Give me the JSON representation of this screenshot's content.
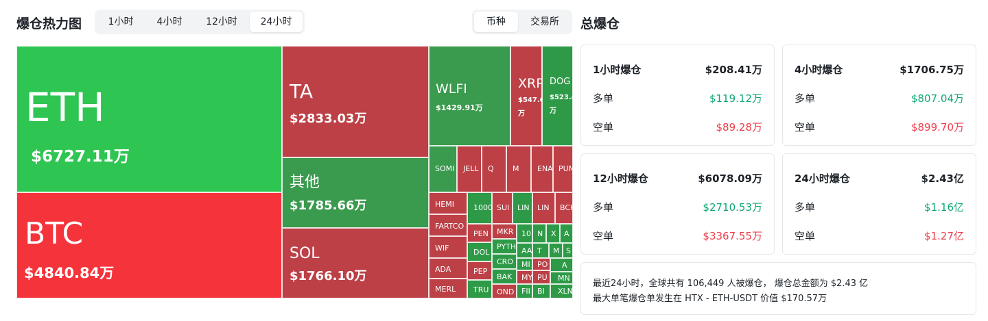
{
  "heatmap": {
    "title": "爆仓热力图",
    "time_tabs": [
      "1小时",
      "4小时",
      "12小时",
      "24小时"
    ],
    "active_time_tab": "24小时",
    "group_tabs": [
      "币种",
      "交易所"
    ],
    "active_group_tab": "币种",
    "colors": {
      "long_green": "#2fc552",
      "dark_green": "#3a9a4d",
      "short_red": "#f5333a",
      "dark_red": "#bd4047"
    },
    "tiles": {
      "eth": {
        "symbol": "ETH",
        "value": "$6727.11万"
      },
      "btc": {
        "symbol": "BTC",
        "value": "$4840.84万"
      },
      "ta": {
        "symbol": "TA",
        "value": "$2833.03万"
      },
      "other": {
        "symbol": "其他",
        "value": "$1785.66万"
      },
      "sol": {
        "symbol": "SOL",
        "value": "$1766.10万"
      },
      "wlfi": {
        "symbol": "WLFI",
        "value": "$1429.91万"
      },
      "xrp": {
        "symbol": "XRP",
        "value": "$547.6",
        "value2": "万"
      },
      "doge": {
        "symbol": "DOG",
        "value": "$523.4",
        "value2": "万"
      },
      "somi": {
        "symbol": "SOMI"
      },
      "jelly": {
        "symbol": "JELL"
      },
      "q": {
        "symbol": "Q"
      },
      "m": {
        "symbol": "M"
      },
      "ena": {
        "symbol": "ENA"
      },
      "pump": {
        "symbol": "PUM"
      },
      "hemi": {
        "symbol": "HEMI"
      },
      "fartcoin": {
        "symbol": "FARTCO"
      },
      "wif": {
        "symbol": "WIF"
      },
      "ada": {
        "symbol": "ADA"
      },
      "merl": {
        "symbol": "MERL"
      },
      "k1000": {
        "symbol": "1000"
      },
      "sui": {
        "symbol": "SUI"
      },
      "link": {
        "symbol": "LIN"
      },
      "linea": {
        "symbol": "LIN"
      },
      "bch": {
        "symbol": "BCH"
      },
      "pengu": {
        "symbol": "PEN"
      },
      "dolo": {
        "symbol": "DOL"
      },
      "pepe": {
        "symbol": "PEP"
      },
      "trump": {
        "symbol": "TRU"
      },
      "mkr": {
        "symbol": "MKR"
      },
      "pyth": {
        "symbol": "PYTH"
      },
      "crv": {
        "symbol": "CRO"
      },
      "bake": {
        "symbol": "BAK"
      },
      "ondo": {
        "symbol": "OND"
      },
      "s10": {
        "symbol": "10"
      },
      "n": {
        "symbol": "N"
      },
      "x": {
        "symbol": "X"
      },
      "a": {
        "symbol": "A"
      },
      "aa": {
        "symbol": "AA"
      },
      "t": {
        "symbol": "T"
      },
      "m2": {
        "symbol": "M"
      },
      "s": {
        "symbol": "S"
      },
      "mi": {
        "symbol": "MI"
      },
      "po": {
        "symbol": "PO"
      },
      "a2": {
        "symbol": "A"
      },
      "my": {
        "symbol": "MY"
      },
      "pu": {
        "symbol": "PU"
      },
      "mn": {
        "symbol": "MN"
      },
      "fi": {
        "symbol": "FII"
      },
      "bi": {
        "symbol": "BI"
      },
      "xln": {
        "symbol": "XLN"
      }
    }
  },
  "totals": {
    "title": "总爆仓",
    "long_label": "多单",
    "short_label": "空单",
    "cards": [
      {
        "period": "1小时爆仓",
        "total": "$208.41万",
        "long": "$119.12万",
        "short": "$89.28万"
      },
      {
        "period": "4小时爆仓",
        "total": "$1706.75万",
        "long": "$807.04万",
        "short": "$899.70万"
      },
      {
        "period": "12小时爆仓",
        "total": "$6078.09万",
        "long": "$2710.53万",
        "short": "$3367.55万"
      },
      {
        "period": "24小时爆仓",
        "total": "$2.43亿",
        "long": "$1.16亿",
        "short": "$1.27亿"
      }
    ],
    "summary_line1": "最近24小时，全球共有 106,449 人被爆仓， 爆仓总金额为 $2.43 亿",
    "summary_line2": "最大单笔爆仓单发生在 HTX - ETH-USDT 价值 $170.57万"
  }
}
